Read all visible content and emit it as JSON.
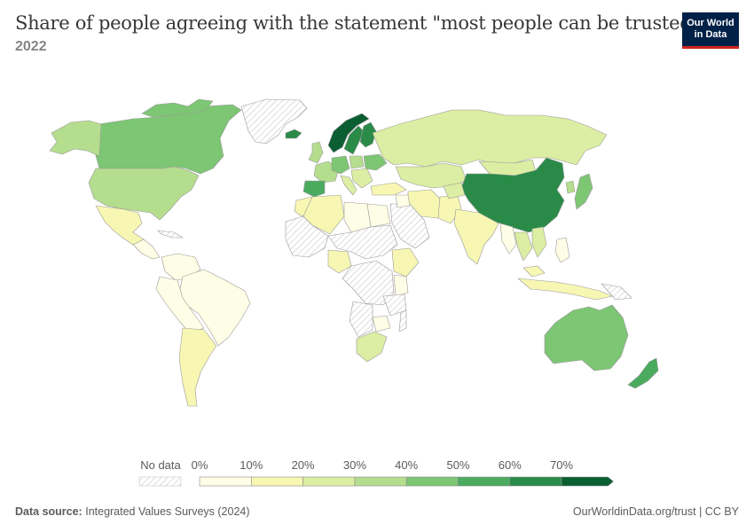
{
  "header": {
    "title": "Share of people agreeing with the statement \"most people can be trusted\"",
    "subtitle": "2022"
  },
  "logo": {
    "line1": "Our World",
    "line2": "in Data"
  },
  "legend": {
    "no_data_label": "No data",
    "ticks": [
      "0%",
      "10%",
      "20%",
      "30%",
      "40%",
      "50%",
      "60%",
      "70%"
    ],
    "colors": [
      "#fefde5",
      "#f7f7b3",
      "#dceea3",
      "#b5dd8e",
      "#7dc674",
      "#4aab5f",
      "#2a8b48",
      "#0b5e32"
    ],
    "no_data_color": "#e8e8e8"
  },
  "footer": {
    "source_label": "Data source:",
    "source_value": "Integrated Values Surveys (2024)",
    "link": "OurWorldinData.org/trust | CC BY"
  },
  "map_data": {
    "metric": "Share of people agreeing with the statement \"most people can be trusted\"",
    "year": "2022",
    "unit": "%",
    "countries": [
      {
        "name": "Norway",
        "value": 72
      },
      {
        "name": "Denmark",
        "value": 74
      },
      {
        "name": "Sweden",
        "value": 63
      },
      {
        "name": "Finland",
        "value": 68
      },
      {
        "name": "China",
        "value": 63
      },
      {
        "name": "New Zealand",
        "value": 57
      },
      {
        "name": "Australia",
        "value": 48
      },
      {
        "name": "Canada",
        "value": 47
      },
      {
        "name": "Netherlands",
        "value": 58
      },
      {
        "name": "Germany",
        "value": 42
      },
      {
        "name": "Switzerland",
        "value": 54
      },
      {
        "name": "Spain",
        "value": 43
      },
      {
        "name": "United Kingdom",
        "value": 40
      },
      {
        "name": "United States",
        "value": 37
      },
      {
        "name": "Japan",
        "value": 34
      },
      {
        "name": "Vietnam",
        "value": 27
      },
      {
        "name": "Russia",
        "value": 24
      },
      {
        "name": "South Africa",
        "value": 23
      },
      {
        "name": "India",
        "value": 17
      },
      {
        "name": "Argentina",
        "value": 19
      },
      {
        "name": "Mexico",
        "value": 13
      },
      {
        "name": "Brazil",
        "value": 5
      },
      {
        "name": "Colombia",
        "value": 4
      },
      {
        "name": "Peru",
        "value": 4
      },
      {
        "name": "Egypt",
        "value": 7
      },
      {
        "name": "Libya",
        "value": 8
      },
      {
        "name": "Nigeria",
        "value": 12
      },
      {
        "name": "Ethiopia",
        "value": 13
      },
      {
        "name": "Kenya",
        "value": 10
      },
      {
        "name": "Indonesia",
        "value": 5
      },
      {
        "name": "Philippines",
        "value": 5
      },
      {
        "name": "Iran",
        "value": 14
      },
      {
        "name": "Turkey",
        "value": 14
      },
      {
        "name": "Kazakhstan",
        "value": 28
      },
      {
        "name": "Mongolia",
        "value": 24
      },
      {
        "name": "Thailand",
        "value": 29
      }
    ]
  }
}
